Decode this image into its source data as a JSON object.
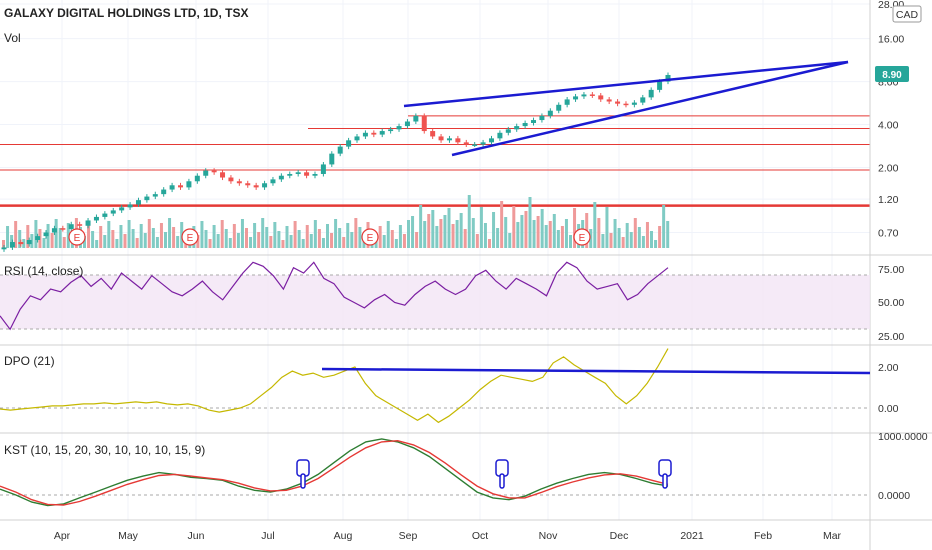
{
  "chart_data": {
    "type": "candlestick",
    "title": "GALAXY DIGITAL HOLDINGS LTD, 1D, TSX",
    "currency": "CAD",
    "last_price": "8.90",
    "scale": "log",
    "price_ticks": [
      "28.00",
      "16.00",
      "8.00",
      "4.00",
      "2.00",
      "1.20",
      "0.70"
    ],
    "x_ticks": [
      "Apr",
      "May",
      "Jun",
      "Jul",
      "Aug",
      "Sep",
      "Oct",
      "Nov",
      "Dec",
      "2021",
      "Feb",
      "Mar"
    ],
    "colors": {
      "up": "#26a69a",
      "down": "#ef5350",
      "line": "#1b1bd1",
      "hline": "#e53935",
      "rsi": "#7b1fa2",
      "dpo": "#c5b800",
      "kst": "#2e7d32",
      "kst_signal": "#e53935"
    },
    "price_series": [
      0.55,
      0.6,
      0.58,
      0.62,
      0.66,
      0.7,
      0.75,
      0.74,
      0.8,
      0.78,
      0.85,
      0.9,
      0.95,
      1.0,
      1.05,
      1.1,
      1.18,
      1.25,
      1.3,
      1.4,
      1.5,
      1.45,
      1.6,
      1.75,
      1.9,
      1.85,
      1.7,
      1.6,
      1.55,
      1.5,
      1.45,
      1.55,
      1.65,
      1.75,
      1.8,
      1.85,
      1.75,
      1.8,
      2.1,
      2.5,
      2.8,
      3.1,
      3.3,
      3.5,
      3.4,
      3.6,
      3.7,
      3.9,
      4.2,
      4.6,
      3.6,
      3.3,
      3.1,
      3.2,
      3.0,
      2.9,
      2.9,
      3.0,
      3.2,
      3.5,
      3.7,
      3.9,
      4.1,
      4.3,
      4.6,
      5.0,
      5.5,
      6.0,
      6.3,
      6.5,
      6.4,
      6.0,
      5.8,
      5.6,
      5.5,
      5.7,
      6.2,
      7.0,
      8.0,
      8.9
    ],
    "horizontal_levels": [
      4.6,
      3.75,
      2.9,
      1.92,
      1.08
    ],
    "earnings_markers": [
      "E",
      "E",
      "E",
      "E"
    ],
    "rsi": {
      "label": "RSI (14, close)",
      "ticks": [
        "75.00",
        "50.00",
        "25.00"
      ],
      "upper": 70,
      "lower": 30,
      "values": [
        40,
        30,
        45,
        55,
        52,
        60,
        58,
        65,
        70,
        62,
        68,
        60,
        72,
        66,
        60,
        70,
        64,
        58,
        55,
        60,
        66,
        58,
        52,
        62,
        72,
        80,
        77,
        70,
        60,
        76,
        72,
        80,
        68,
        64,
        54,
        50,
        46,
        52,
        56,
        50,
        48,
        56,
        62,
        66,
        60,
        56,
        60,
        70,
        74,
        66,
        60,
        68,
        64,
        60,
        55,
        72,
        80,
        76,
        66,
        60,
        62,
        64,
        52,
        56,
        64,
        70,
        76
      ]
    },
    "dpo": {
      "label": "DPO (21)",
      "ticks": [
        "2.00",
        "0.00"
      ],
      "values": [
        -0.05,
        -0.1,
        -0.05,
        0,
        0.05,
        0.1,
        0.1,
        0.15,
        0.2,
        0.2,
        0.25,
        0.2,
        0.25,
        0.3,
        0.25,
        0.3,
        0.2,
        0.15,
        0.2,
        0.1,
        -0.1,
        -0.2,
        -0.1,
        0,
        0.2,
        0.6,
        1.0,
        1.5,
        1.8,
        1.6,
        1.7,
        1.5,
        1.6,
        1.8,
        2.0,
        1.2,
        0.6,
        0.3,
        0.0,
        -0.3,
        -0.6,
        -0.3,
        -0.7,
        -0.4,
        0.0,
        0.4,
        0.9,
        1.3,
        1.6,
        1.5,
        1.4,
        1.3,
        1.5,
        2.2,
        2.5,
        2.1,
        1.8,
        1.5,
        1.2,
        0.6,
        0.2,
        0.6,
        1.2,
        2.0,
        2.9
      ]
    },
    "kst": {
      "label": "KST (10, 15, 20, 30, 10, 10, 10, 15, 9)",
      "ticks": [
        "1000.0000",
        "0.0000"
      ],
      "kst_values": [
        100,
        0,
        -120,
        -180,
        -150,
        -50,
        50,
        150,
        250,
        320,
        380,
        350,
        300,
        280,
        250,
        150,
        80,
        50,
        100,
        200,
        350,
        550,
        750,
        900,
        950,
        900,
        800,
        650,
        450,
        250,
        50,
        -50,
        -80,
        -20,
        100,
        200,
        280,
        350,
        380,
        350,
        280,
        200,
        150
      ],
      "signal_values": [
        150,
        50,
        -80,
        -160,
        -170,
        -110,
        -20,
        80,
        180,
        260,
        330,
        350,
        320,
        290,
        260,
        200,
        120,
        70,
        80,
        150,
        280,
        460,
        640,
        800,
        900,
        920,
        850,
        720,
        540,
        340,
        150,
        20,
        -50,
        -50,
        40,
        140,
        220,
        290,
        340,
        360,
        320,
        250,
        180
      ]
    }
  }
}
